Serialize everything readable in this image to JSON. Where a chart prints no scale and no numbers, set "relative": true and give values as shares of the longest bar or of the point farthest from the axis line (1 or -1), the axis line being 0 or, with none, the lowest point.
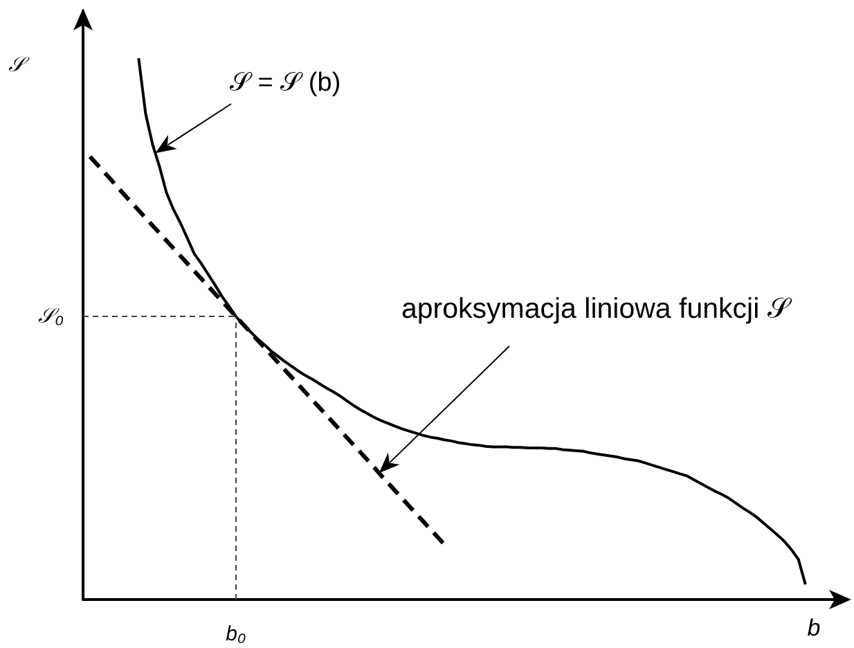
{
  "chart_data": {
    "type": "line",
    "relative": true,
    "marker": "none",
    "xlabel": "b",
    "ylabel": "𝒮",
    "categories": [
      null,
      null,
      null,
      null,
      null,
      null,
      null,
      null,
      null,
      null,
      null,
      null,
      null,
      null,
      null,
      null,
      null,
      null,
      null,
      null,
      null,
      null,
      null,
      null,
      null,
      null,
      null,
      null,
      null,
      null,
      null,
      null,
      null,
      null,
      null,
      null,
      null,
      null,
      null,
      null,
      null,
      null,
      null,
      null,
      null,
      null,
      null,
      null,
      null,
      null,
      null,
      null,
      null,
      null,
      null,
      null,
      null,
      null,
      null,
      null,
      null,
      null,
      null,
      null,
      null,
      null,
      null,
      null,
      null,
      null,
      null,
      null,
      null,
      null,
      null,
      null,
      null,
      null,
      null,
      null,
      null,
      null,
      null,
      null,
      null,
      null,
      null,
      null,
      null,
      null,
      null,
      null,
      null,
      null,
      null,
      null,
      null,
      null,
      null,
      null,
      null,
      null,
      null,
      null,
      null,
      null,
      null,
      null,
      null,
      null,
      null
    ],
    "series": [
      {
        "color": "#000000",
        "line_style": "solid",
        "values": [
          null,
          null,
          null,
          null,
          null,
          null,
          null,
          null,
          1,
          0.898,
          0.841,
          0.8,
          0.752,
          0.721,
          0.696,
          0.668,
          0.639,
          0.621,
          0.601,
          0.581,
          0.56,
          0.542,
          0.523,
          0.509,
          0.496,
          0.483,
          0.472,
          0.46,
          0.45,
          0.44,
          0.431,
          0.422,
          0.414,
          0.407,
          0.399,
          0.391,
          0.384,
          0.376,
          0.367,
          0.358,
          0.35,
          0.343,
          0.336,
          0.33,
          0.325,
          0.32,
          0.315,
          0.311,
          0.307,
          0.303,
          0.3,
          0.298,
          0.295,
          0.293,
          0.29,
          0.288,
          0.286,
          0.285,
          0.283,
          0.282,
          0.282,
          0.282,
          0.281,
          0.281,
          0.28,
          0.28,
          0.28,
          0.279,
          0.279,
          0.277,
          0.276,
          0.275,
          0.274,
          0.271,
          0.269,
          0.267,
          0.265,
          0.263,
          0.26,
          0.258,
          0.256,
          0.252,
          0.248,
          0.244,
          0.24,
          0.236,
          0.232,
          0.228,
          0.221,
          0.214,
          0.207,
          0.2,
          0.194,
          0.187,
          0.178,
          0.169,
          0.161,
          0.152,
          0.141,
          0.13,
          0.119,
          0.107,
          0.092,
          0.074,
          0.028,
          null,
          null,
          null,
          null,
          null,
          null
        ]
      },
      {
        "color": "#000000",
        "line_style": "dashed",
        "values": [
          null,
          0.818,
          0.804,
          0.79,
          0.776,
          0.761,
          0.747,
          0.733,
          0.719,
          0.705,
          0.691,
          0.677,
          0.663,
          0.649,
          0.635,
          0.621,
          0.607,
          0.593,
          0.579,
          0.565,
          0.551,
          0.537,
          0.523,
          0.509,
          0.495,
          0.481,
          0.467,
          0.453,
          0.439,
          0.425,
          0.411,
          0.397,
          0.383,
          0.369,
          0.355,
          0.341,
          0.327,
          0.313,
          0.299,
          0.285,
          0.271,
          0.257,
          0.243,
          0.228,
          0.214,
          0.2,
          0.186,
          0.172,
          0.158,
          0.144,
          0.13,
          0.116,
          0.102,
          null,
          null,
          null,
          null,
          null,
          null,
          null,
          null,
          null,
          null,
          null,
          null,
          null,
          null,
          null,
          null,
          null,
          null,
          null,
          null,
          null,
          null,
          null,
          null,
          null,
          null,
          null,
          null,
          null,
          null,
          null,
          null,
          null,
          null,
          null,
          null,
          null,
          null,
          null,
          null,
          null,
          null,
          null,
          null,
          null,
          null,
          null,
          null,
          null,
          null,
          null,
          null,
          null,
          null,
          null,
          null,
          null,
          null
        ]
      }
    ],
    "ref_lines": [
      {
        "axis": "y",
        "value": 0.523,
        "label": "𝒮₀",
        "color": "#404040",
        "line_style": "dashed"
      }
    ],
    "annotations": [
      "𝒮 = 𝒮 (b)",
      "aproksymacja liniowa funkcji 𝒮",
      "b₀"
    ]
  }
}
